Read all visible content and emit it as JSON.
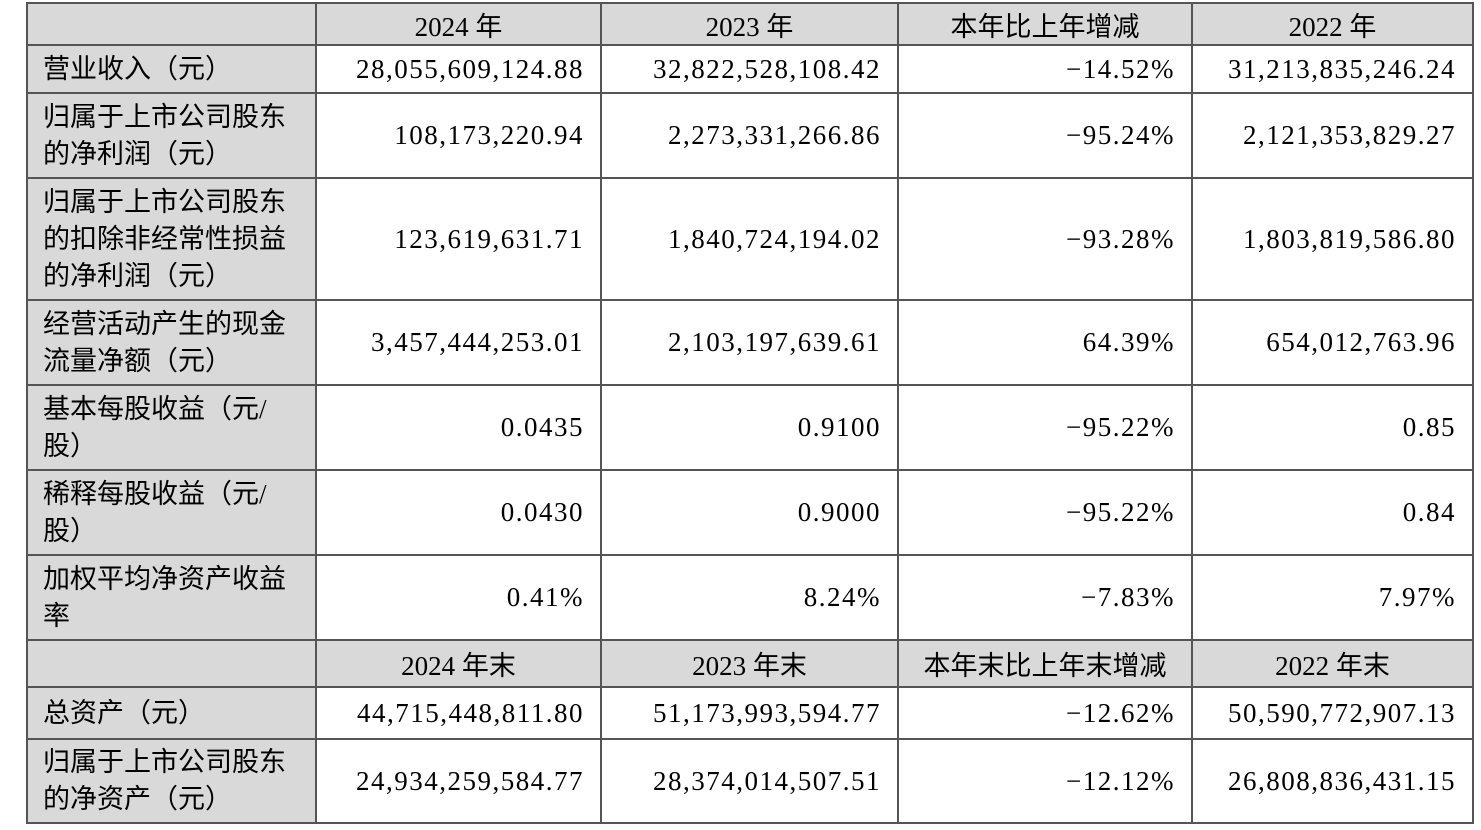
{
  "document": {
    "type": "annual-report-key-financials-table",
    "colors": {
      "header_background": "#d9d9d9",
      "label_background": "#d9d9d9",
      "cell_background": "#ffffff",
      "border": "#555555",
      "text": "#000000"
    },
    "table": {
      "sections": [
        {
          "header": {
            "label": "",
            "cols": [
              "2024 年",
              "2023 年",
              "本年比上年增减",
              "2022 年"
            ]
          },
          "rows": [
            {
              "label": "营业收入（元）",
              "values": [
                "28,055,609,124.88",
                "32,822,528,108.42",
                "−14.52%",
                "31,213,835,246.24"
              ]
            },
            {
              "label": "归属于上市公司股东的净利润（元）",
              "values": [
                "108,173,220.94",
                "2,273,331,266.86",
                "−95.24%",
                "2,121,353,829.27"
              ]
            },
            {
              "label": "归属于上市公司股东的扣除非经常性损益的净利润（元）",
              "values": [
                "123,619,631.71",
                "1,840,724,194.02",
                "−93.28%",
                "1,803,819,586.80"
              ]
            },
            {
              "label": "经营活动产生的现金流量净额（元）",
              "values": [
                "3,457,444,253.01",
                "2,103,197,639.61",
                "64.39%",
                "654,012,763.96"
              ]
            },
            {
              "label": "基本每股收益（元/股）",
              "values": [
                "0.0435",
                "0.9100",
                "−95.22%",
                "0.85"
              ]
            },
            {
              "label": "稀释每股收益（元/股）",
              "values": [
                "0.0430",
                "0.9000",
                "−95.22%",
                "0.84"
              ]
            },
            {
              "label": "加权平均净资产收益率",
              "values": [
                "0.41%",
                "8.24%",
                "−7.83%",
                "7.97%"
              ]
            }
          ]
        },
        {
          "header": {
            "label": "",
            "cols": [
              "2024 年末",
              "2023 年末",
              "本年末比上年末增减",
              "2022 年末"
            ]
          },
          "rows": [
            {
              "label": "总资产（元）",
              "values": [
                "44,715,448,811.80",
                "51,173,993,594.77",
                "−12.62%",
                "50,590,772,907.13"
              ]
            },
            {
              "label": "归属于上市公司股东的净资产（元）",
              "values": [
                "24,934,259,584.77",
                "28,374,014,507.51",
                "−12.12%",
                "26,808,836,431.15"
              ]
            }
          ]
        }
      ]
    }
  }
}
